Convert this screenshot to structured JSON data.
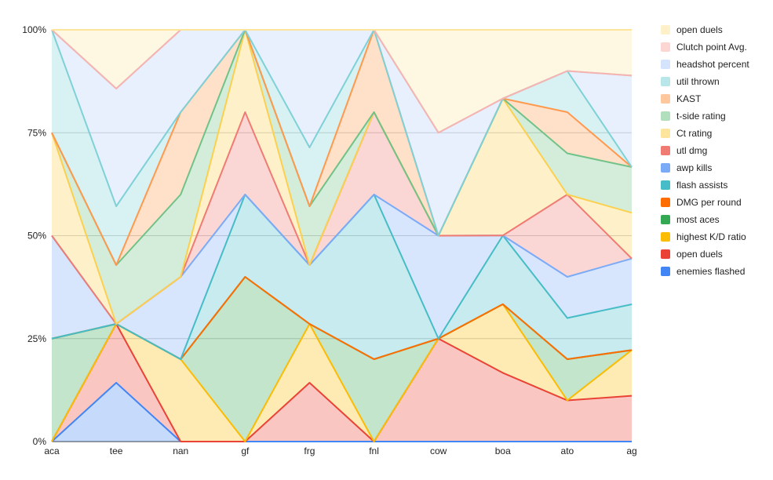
{
  "chart_data": {
    "type": "area",
    "stacking": "percent",
    "categories": [
      "aca",
      "tee",
      "nan",
      "gf",
      "frg",
      "fnl",
      "cow",
      "boa",
      "ato",
      "ag"
    ],
    "y_ticks": [
      "0%",
      "25%",
      "50%",
      "75%",
      "100%"
    ],
    "ylim": [
      0,
      100
    ],
    "grid": true,
    "legend_position": "right",
    "series": [
      {
        "name": "enemies flashed",
        "color": "#4285F4",
        "values": [
          0,
          12.5,
          0,
          0,
          0,
          0,
          0,
          0,
          0,
          0
        ]
      },
      {
        "name": "open duels",
        "color": "#EA4335",
        "values": [
          0,
          12.5,
          0,
          0,
          14.3,
          0,
          25,
          16.7,
          10,
          11.1
        ]
      },
      {
        "name": "highest K/D ratio",
        "color": "#FBBC04",
        "values": [
          0,
          0,
          20,
          0,
          14.3,
          0,
          0,
          16.7,
          0,
          11.1
        ]
      },
      {
        "name": "most aces",
        "color": "#34A853",
        "values": [
          25,
          0,
          0,
          40,
          0,
          20,
          0,
          0,
          10,
          0
        ]
      },
      {
        "name": "DMG per round",
        "color": "#FF6D01",
        "values": [
          0,
          0,
          0,
          0,
          0,
          0,
          0,
          0,
          0,
          0
        ]
      },
      {
        "name": "flash assists",
        "color": "#46BDC6",
        "values": [
          0,
          0,
          0,
          20,
          14.3,
          40,
          0,
          16.7,
          10,
          11.1
        ]
      },
      {
        "name": "awp kills",
        "color": "#7BAAF7",
        "values": [
          25,
          0,
          20,
          0,
          0,
          0,
          25,
          0,
          10,
          11.1
        ]
      },
      {
        "name": "utl dmg",
        "color": "#F07B72",
        "values": [
          0,
          0,
          0,
          20,
          0,
          20,
          0,
          0,
          20,
          0
        ]
      },
      {
        "name": "Ct rating",
        "color": "#FCD04F",
        "values": [
          25,
          0,
          0,
          20,
          0,
          0,
          0,
          33.3,
          0,
          11.1
        ]
      },
      {
        "name": "t-side rating",
        "color": "#71C287",
        "values": [
          0,
          12.5,
          20,
          0,
          14.3,
          0,
          0,
          0,
          10,
          11.1
        ]
      },
      {
        "name": "KAST",
        "color": "#FF994D",
        "values": [
          0,
          0,
          20,
          0,
          0,
          20,
          0,
          0,
          10,
          0
        ]
      },
      {
        "name": "util thrown",
        "color": "#7ED1D7",
        "values": [
          25,
          12.5,
          0,
          0,
          14.3,
          0,
          0,
          0,
          10,
          0
        ]
      },
      {
        "name": "headshot percent",
        "color": "#B3CEFB",
        "values": [
          0,
          25,
          20,
          0,
          28.6,
          0,
          25,
          0,
          0,
          22.2
        ]
      },
      {
        "name": "Clutch point Avg.",
        "color": "#F7B4AE",
        "values": [
          0,
          0,
          0,
          0,
          0,
          0,
          0,
          0,
          0,
          0
        ]
      },
      {
        "name": "open duels",
        "color": "#FDE49B",
        "values": [
          0,
          12.5,
          0,
          0,
          0,
          0,
          25,
          16.7,
          10,
          11.1
        ]
      }
    ]
  }
}
